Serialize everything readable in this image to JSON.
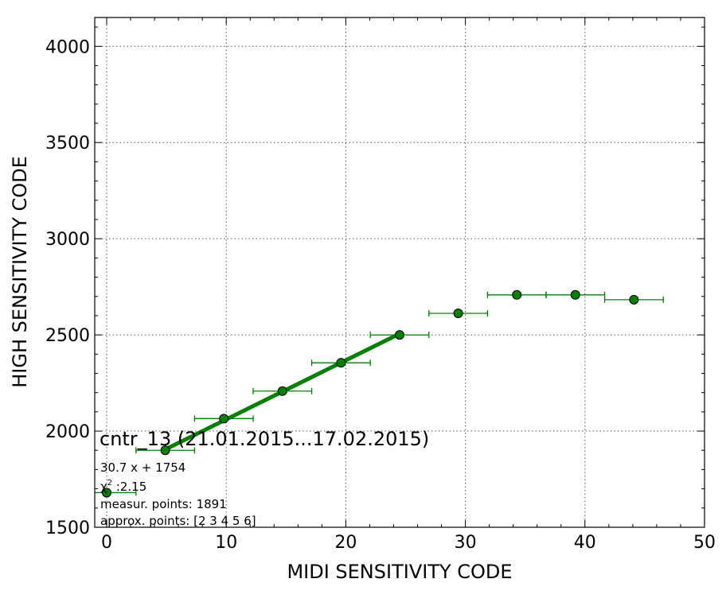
{
  "chart_data": {
    "type": "scatter",
    "xlabel": "MIDI SENSITIVITY CODE",
    "ylabel": "HIGH SENSITIVITY CODE",
    "xlim": [
      -1,
      50
    ],
    "ylim": [
      1500,
      4150
    ],
    "xticks": [
      0,
      10,
      20,
      30,
      40,
      50
    ],
    "yticks": [
      1500,
      2000,
      2500,
      3000,
      3500,
      4000
    ],
    "grid": true,
    "marker_color": "#008000",
    "fit_color": "#008000",
    "points": [
      {
        "x": 0.0,
        "y": 1680,
        "xerr": 2.45
      },
      {
        "x": 4.9,
        "y": 1900,
        "xerr": 2.45
      },
      {
        "x": 9.8,
        "y": 2065,
        "xerr": 2.45
      },
      {
        "x": 14.7,
        "y": 2208,
        "xerr": 2.45
      },
      {
        "x": 19.6,
        "y": 2355,
        "xerr": 2.45
      },
      {
        "x": 24.5,
        "y": 2500,
        "xerr": 2.45
      },
      {
        "x": 29.4,
        "y": 2612,
        "xerr": 2.45
      },
      {
        "x": 34.3,
        "y": 2708,
        "xerr": 2.45
      },
      {
        "x": 39.2,
        "y": 2708,
        "xerr": 2.45
      },
      {
        "x": 44.1,
        "y": 2683,
        "xerr": 2.45
      }
    ],
    "fit_line": {
      "slope": 30.7,
      "intercept": 1754,
      "x_range": [
        4.9,
        24.5
      ]
    },
    "annotations": {
      "title": "cntr_13 (21.01.2015...17.02.2015)",
      "equation": "30.7 x + 1754",
      "chi_symbol": "χ",
      "chi_exp": "2",
      "chi_value": " :2.15",
      "measur_points": "measur. points: 1891",
      "approx_points": "approx. points: [2 3 4 5 6]"
    }
  }
}
